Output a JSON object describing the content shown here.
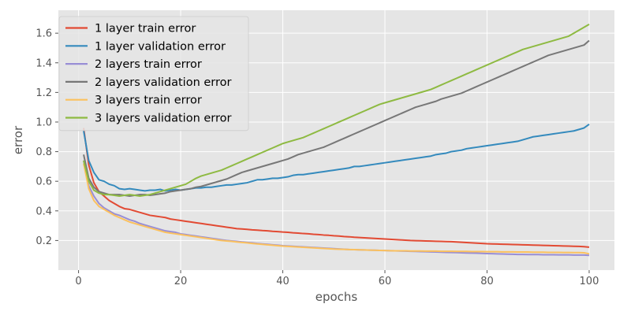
{
  "chart_data": {
    "type": "line",
    "title": "",
    "xlabel": "epochs",
    "ylabel": "error",
    "xlim": [
      -3.95,
      104.95
    ],
    "ylim": [
      0.0,
      1.755
    ],
    "xticks": [
      0,
      20,
      40,
      60,
      80,
      100
    ],
    "yticks": [
      0.2,
      0.4,
      0.6,
      0.8,
      1.0,
      1.2,
      1.4,
      1.6
    ],
    "grid": true,
    "legend": "top-left",
    "x": [
      1,
      2,
      3,
      4,
      5,
      6,
      7,
      8,
      9,
      10,
      11,
      12,
      13,
      14,
      15,
      16,
      17,
      18,
      19,
      20,
      21,
      22,
      23,
      24,
      25,
      26,
      27,
      28,
      29,
      30,
      31,
      32,
      33,
      34,
      35,
      36,
      37,
      38,
      39,
      40,
      41,
      42,
      43,
      44,
      45,
      46,
      47,
      48,
      49,
      50,
      51,
      52,
      53,
      54,
      55,
      56,
      57,
      58,
      59,
      60,
      61,
      62,
      63,
      64,
      65,
      66,
      67,
      68,
      69,
      70,
      71,
      72,
      73,
      74,
      75,
      76,
      77,
      78,
      79,
      80,
      81,
      82,
      83,
      84,
      85,
      86,
      87,
      88,
      89,
      90,
      91,
      92,
      93,
      94,
      95,
      96,
      97,
      98,
      99,
      100
    ],
    "series": [
      {
        "name": "1 layer train error",
        "color": "#E24A33",
        "values": [
          0.96,
          0.71,
          0.59,
          0.53,
          0.5,
          0.47,
          0.45,
          0.43,
          0.415,
          0.41,
          0.4,
          0.39,
          0.38,
          0.37,
          0.365,
          0.36,
          0.355,
          0.345,
          0.34,
          0.335,
          0.33,
          0.325,
          0.32,
          0.315,
          0.31,
          0.305,
          0.3,
          0.295,
          0.29,
          0.285,
          0.28,
          0.278,
          0.275,
          0.272,
          0.27,
          0.267,
          0.265,
          0.262,
          0.26,
          0.257,
          0.255,
          0.252,
          0.25,
          0.247,
          0.245,
          0.242,
          0.24,
          0.237,
          0.235,
          0.232,
          0.23,
          0.227,
          0.225,
          0.222,
          0.22,
          0.218,
          0.216,
          0.214,
          0.212,
          0.21,
          0.208,
          0.206,
          0.204,
          0.202,
          0.2,
          0.199,
          0.198,
          0.197,
          0.196,
          0.195,
          0.194,
          0.193,
          0.192,
          0.19,
          0.188,
          0.186,
          0.184,
          0.182,
          0.18,
          0.178,
          0.177,
          0.176,
          0.175,
          0.174,
          0.173,
          0.172,
          0.171,
          0.17,
          0.169,
          0.168,
          0.167,
          0.166,
          0.165,
          0.164,
          0.163,
          0.162,
          0.161,
          0.16,
          0.158,
          0.155
        ]
      },
      {
        "name": "1 layer validation error",
        "color": "#348ABD",
        "values": [
          0.94,
          0.74,
          0.66,
          0.61,
          0.6,
          0.58,
          0.57,
          0.55,
          0.545,
          0.55,
          0.545,
          0.54,
          0.535,
          0.54,
          0.54,
          0.545,
          0.535,
          0.54,
          0.545,
          0.54,
          0.545,
          0.55,
          0.555,
          0.555,
          0.56,
          0.56,
          0.565,
          0.57,
          0.575,
          0.575,
          0.58,
          0.585,
          0.59,
          0.6,
          0.61,
          0.61,
          0.615,
          0.62,
          0.62,
          0.625,
          0.63,
          0.64,
          0.645,
          0.645,
          0.65,
          0.655,
          0.66,
          0.665,
          0.67,
          0.675,
          0.68,
          0.685,
          0.69,
          0.7,
          0.7,
          0.705,
          0.71,
          0.715,
          0.72,
          0.725,
          0.73,
          0.735,
          0.74,
          0.745,
          0.75,
          0.755,
          0.76,
          0.765,
          0.77,
          0.78,
          0.785,
          0.79,
          0.8,
          0.805,
          0.81,
          0.82,
          0.825,
          0.83,
          0.835,
          0.84,
          0.845,
          0.85,
          0.855,
          0.86,
          0.865,
          0.87,
          0.88,
          0.89,
          0.9,
          0.905,
          0.91,
          0.915,
          0.92,
          0.925,
          0.93,
          0.935,
          0.94,
          0.95,
          0.96,
          0.985
        ]
      },
      {
        "name": "2 layers train error",
        "color": "#988ED5",
        "values": [
          0.74,
          0.57,
          0.5,
          0.45,
          0.42,
          0.4,
          0.38,
          0.37,
          0.355,
          0.34,
          0.33,
          0.315,
          0.305,
          0.295,
          0.285,
          0.275,
          0.265,
          0.26,
          0.255,
          0.245,
          0.24,
          0.235,
          0.23,
          0.225,
          0.22,
          0.215,
          0.21,
          0.205,
          0.2,
          0.197,
          0.194,
          0.19,
          0.187,
          0.184,
          0.18,
          0.177,
          0.174,
          0.171,
          0.168,
          0.165,
          0.163,
          0.161,
          0.159,
          0.157,
          0.155,
          0.153,
          0.151,
          0.149,
          0.147,
          0.145,
          0.143,
          0.141,
          0.139,
          0.138,
          0.137,
          0.136,
          0.135,
          0.134,
          0.133,
          0.132,
          0.131,
          0.13,
          0.129,
          0.128,
          0.127,
          0.126,
          0.125,
          0.124,
          0.123,
          0.122,
          0.121,
          0.12,
          0.119,
          0.118,
          0.117,
          0.116,
          0.115,
          0.114,
          0.113,
          0.112,
          0.111,
          0.11,
          0.109,
          0.108,
          0.107,
          0.106,
          0.106,
          0.105,
          0.105,
          0.105,
          0.104,
          0.104,
          0.104,
          0.103,
          0.103,
          0.103,
          0.102,
          0.102,
          0.102,
          0.1
        ]
      },
      {
        "name": "2 layers validation error",
        "color": "#777777",
        "values": [
          0.78,
          0.62,
          0.56,
          0.53,
          0.52,
          0.51,
          0.51,
          0.51,
          0.505,
          0.5,
          0.505,
          0.51,
          0.51,
          0.505,
          0.51,
          0.515,
          0.52,
          0.53,
          0.535,
          0.54,
          0.545,
          0.55,
          0.56,
          0.565,
          0.575,
          0.585,
          0.595,
          0.605,
          0.615,
          0.63,
          0.645,
          0.66,
          0.67,
          0.68,
          0.69,
          0.7,
          0.71,
          0.72,
          0.73,
          0.74,
          0.75,
          0.765,
          0.78,
          0.79,
          0.8,
          0.81,
          0.82,
          0.83,
          0.845,
          0.86,
          0.875,
          0.89,
          0.905,
          0.92,
          0.935,
          0.95,
          0.965,
          0.98,
          0.995,
          1.01,
          1.025,
          1.04,
          1.055,
          1.07,
          1.085,
          1.1,
          1.11,
          1.12,
          1.13,
          1.14,
          1.155,
          1.165,
          1.175,
          1.185,
          1.195,
          1.21,
          1.225,
          1.24,
          1.255,
          1.27,
          1.285,
          1.3,
          1.315,
          1.33,
          1.345,
          1.36,
          1.375,
          1.39,
          1.405,
          1.42,
          1.435,
          1.45,
          1.46,
          1.47,
          1.48,
          1.49,
          1.5,
          1.51,
          1.52,
          1.55
        ]
      },
      {
        "name": "3 layers train error",
        "color": "#FBC15E",
        "values": [
          0.72,
          0.55,
          0.47,
          0.43,
          0.41,
          0.39,
          0.37,
          0.355,
          0.34,
          0.325,
          0.315,
          0.305,
          0.295,
          0.285,
          0.275,
          0.265,
          0.255,
          0.25,
          0.245,
          0.24,
          0.235,
          0.23,
          0.225,
          0.22,
          0.215,
          0.21,
          0.205,
          0.2,
          0.197,
          0.194,
          0.19,
          0.187,
          0.184,
          0.18,
          0.177,
          0.174,
          0.171,
          0.168,
          0.165,
          0.162,
          0.16,
          0.158,
          0.156,
          0.154,
          0.152,
          0.15,
          0.148,
          0.146,
          0.144,
          0.142,
          0.141,
          0.14,
          0.139,
          0.138,
          0.137,
          0.136,
          0.135,
          0.134,
          0.133,
          0.132,
          0.131,
          0.13,
          0.13,
          0.13,
          0.129,
          0.129,
          0.129,
          0.128,
          0.128,
          0.128,
          0.127,
          0.127,
          0.127,
          0.126,
          0.126,
          0.126,
          0.125,
          0.125,
          0.125,
          0.124,
          0.124,
          0.124,
          0.123,
          0.123,
          0.123,
          0.122,
          0.122,
          0.122,
          0.121,
          0.121,
          0.121,
          0.12,
          0.12,
          0.12,
          0.119,
          0.119,
          0.118,
          0.118,
          0.117,
          0.11
        ]
      },
      {
        "name": "3 layers validation error",
        "color": "#8EBA42",
        "values": [
          0.74,
          0.6,
          0.54,
          0.52,
          0.51,
          0.51,
          0.505,
          0.5,
          0.505,
          0.51,
          0.505,
          0.5,
          0.505,
          0.51,
          0.52,
          0.53,
          0.54,
          0.55,
          0.56,
          0.57,
          0.58,
          0.6,
          0.62,
          0.635,
          0.645,
          0.655,
          0.665,
          0.675,
          0.69,
          0.705,
          0.72,
          0.735,
          0.75,
          0.765,
          0.78,
          0.795,
          0.81,
          0.825,
          0.84,
          0.855,
          0.865,
          0.875,
          0.885,
          0.895,
          0.91,
          0.925,
          0.94,
          0.955,
          0.97,
          0.985,
          1.0,
          1.015,
          1.03,
          1.045,
          1.06,
          1.075,
          1.09,
          1.105,
          1.12,
          1.13,
          1.14,
          1.15,
          1.16,
          1.17,
          1.18,
          1.19,
          1.2,
          1.21,
          1.22,
          1.235,
          1.25,
          1.265,
          1.28,
          1.295,
          1.31,
          1.325,
          1.34,
          1.355,
          1.37,
          1.385,
          1.4,
          1.415,
          1.43,
          1.445,
          1.46,
          1.475,
          1.49,
          1.5,
          1.51,
          1.52,
          1.53,
          1.54,
          1.55,
          1.56,
          1.57,
          1.58,
          1.6,
          1.62,
          1.64,
          1.66
        ]
      }
    ]
  }
}
